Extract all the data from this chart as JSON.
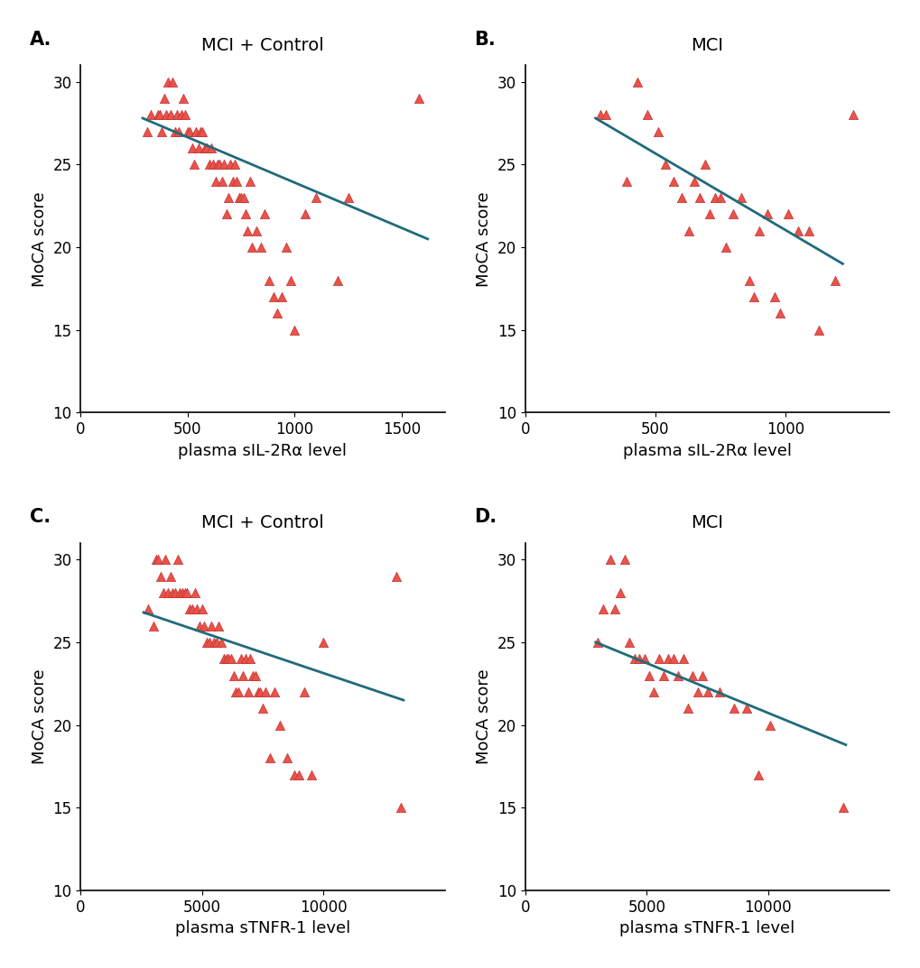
{
  "panel_A": {
    "title": "MCI + Control",
    "label": "A.",
    "xlabel": "plasma sIL-2Rα level",
    "ylabel": "MoCA score",
    "xlim": [
      0,
      1700
    ],
    "ylim": [
      10,
      31
    ],
    "xticks": [
      0,
      500,
      1000,
      1500
    ],
    "yticks": [
      10,
      15,
      20,
      25,
      30
    ],
    "x": [
      310,
      330,
      360,
      370,
      380,
      390,
      400,
      410,
      420,
      430,
      440,
      450,
      460,
      470,
      480,
      490,
      500,
      510,
      520,
      530,
      540,
      550,
      560,
      570,
      580,
      590,
      600,
      610,
      620,
      630,
      640,
      650,
      660,
      670,
      680,
      690,
      700,
      710,
      720,
      730,
      740,
      750,
      760,
      770,
      780,
      790,
      800,
      820,
      840,
      860,
      880,
      900,
      920,
      940,
      960,
      980,
      1000,
      1050,
      1100,
      1200,
      1250,
      1580
    ],
    "y": [
      27,
      28,
      28,
      28,
      27,
      29,
      28,
      30,
      28,
      30,
      27,
      28,
      27,
      28,
      29,
      28,
      27,
      27,
      26,
      25,
      27,
      26,
      27,
      27,
      26,
      26,
      25,
      26,
      25,
      24,
      25,
      25,
      24,
      25,
      22,
      23,
      25,
      24,
      25,
      24,
      23,
      23,
      23,
      22,
      21,
      24,
      20,
      21,
      20,
      22,
      18,
      17,
      16,
      17,
      20,
      18,
      15,
      22,
      23,
      18,
      23,
      29
    ],
    "line_x": [
      290,
      1620
    ],
    "line_y": [
      27.8,
      20.5
    ]
  },
  "panel_B": {
    "title": "MCI",
    "label": "B.",
    "xlabel": "plasma sIL-2Rα level",
    "ylabel": "MoCA score",
    "xlim": [
      0,
      1400
    ],
    "ylim": [
      10,
      31
    ],
    "xticks": [
      0,
      500,
      1000
    ],
    "yticks": [
      10,
      15,
      20,
      25,
      30
    ],
    "x": [
      290,
      310,
      390,
      430,
      470,
      510,
      540,
      570,
      600,
      630,
      650,
      670,
      690,
      710,
      730,
      750,
      770,
      800,
      830,
      860,
      880,
      900,
      930,
      960,
      980,
      1010,
      1050,
      1090,
      1130,
      1190,
      1260
    ],
    "y": [
      28,
      28,
      24,
      30,
      28,
      27,
      25,
      24,
      23,
      21,
      24,
      23,
      25,
      22,
      23,
      23,
      20,
      22,
      23,
      18,
      17,
      21,
      22,
      17,
      16,
      22,
      21,
      21,
      15,
      18,
      28
    ],
    "line_x": [
      270,
      1220
    ],
    "line_y": [
      27.8,
      19.0
    ]
  },
  "panel_C": {
    "title": "MCI + Control",
    "label": "C.",
    "xlabel": "plasma sTNFR-1 level",
    "ylabel": "MoCA score",
    "xlim": [
      0,
      15000
    ],
    "ylim": [
      10,
      31
    ],
    "xticks": [
      0,
      5000,
      10000
    ],
    "yticks": [
      10,
      15,
      20,
      25,
      30
    ],
    "x": [
      2800,
      3000,
      3100,
      3200,
      3300,
      3400,
      3500,
      3600,
      3700,
      3800,
      3900,
      4000,
      4100,
      4200,
      4300,
      4400,
      4500,
      4600,
      4700,
      4800,
      4900,
      5000,
      5100,
      5200,
      5300,
      5400,
      5500,
      5600,
      5700,
      5800,
      5900,
      6000,
      6100,
      6200,
      6300,
      6400,
      6500,
      6600,
      6700,
      6800,
      6900,
      7000,
      7100,
      7200,
      7300,
      7400,
      7500,
      7600,
      7800,
      8000,
      8200,
      8500,
      8800,
      9000,
      9200,
      9500,
      10000,
      13000,
      13200
    ],
    "y": [
      27,
      26,
      30,
      30,
      29,
      28,
      30,
      28,
      29,
      28,
      28,
      30,
      28,
      28,
      28,
      28,
      27,
      27,
      28,
      27,
      26,
      27,
      26,
      25,
      25,
      26,
      25,
      25,
      26,
      25,
      24,
      24,
      24,
      24,
      23,
      22,
      22,
      24,
      23,
      24,
      22,
      24,
      23,
      23,
      22,
      22,
      21,
      22,
      18,
      22,
      20,
      18,
      17,
      17,
      22,
      17,
      25,
      29,
      15
    ],
    "line_x": [
      2600,
      13300
    ],
    "line_y": [
      26.8,
      21.5
    ]
  },
  "panel_D": {
    "title": "MCI",
    "label": "D.",
    "xlabel": "plasma sTNFR-1 level",
    "ylabel": "MoCA score",
    "xlim": [
      0,
      15000
    ],
    "ylim": [
      10,
      31
    ],
    "xticks": [
      0,
      5000,
      10000
    ],
    "yticks": [
      10,
      15,
      20,
      25,
      30
    ],
    "x": [
      3000,
      3200,
      3500,
      3700,
      3900,
      4100,
      4300,
      4500,
      4700,
      4900,
      5100,
      5300,
      5500,
      5700,
      5900,
      6100,
      6300,
      6500,
      6700,
      6900,
      7100,
      7300,
      7500,
      8000,
      8600,
      9100,
      9600,
      10100,
      13100
    ],
    "y": [
      25,
      27,
      30,
      27,
      28,
      30,
      25,
      24,
      24,
      24,
      23,
      22,
      24,
      23,
      24,
      24,
      23,
      24,
      21,
      23,
      22,
      23,
      22,
      22,
      21,
      21,
      17,
      20,
      15
    ],
    "line_x": [
      2900,
      13200
    ],
    "line_y": [
      25.0,
      18.8
    ]
  },
  "marker_color": "#E8534A",
  "marker_edge_color": "#C43030",
  "line_color": "#1F6B7A",
  "marker_size": 55,
  "line_width": 2.0,
  "background_color": "#ffffff",
  "title_fontsize": 14,
  "label_fontsize": 15,
  "tick_fontsize": 12,
  "axis_label_fontsize": 13
}
